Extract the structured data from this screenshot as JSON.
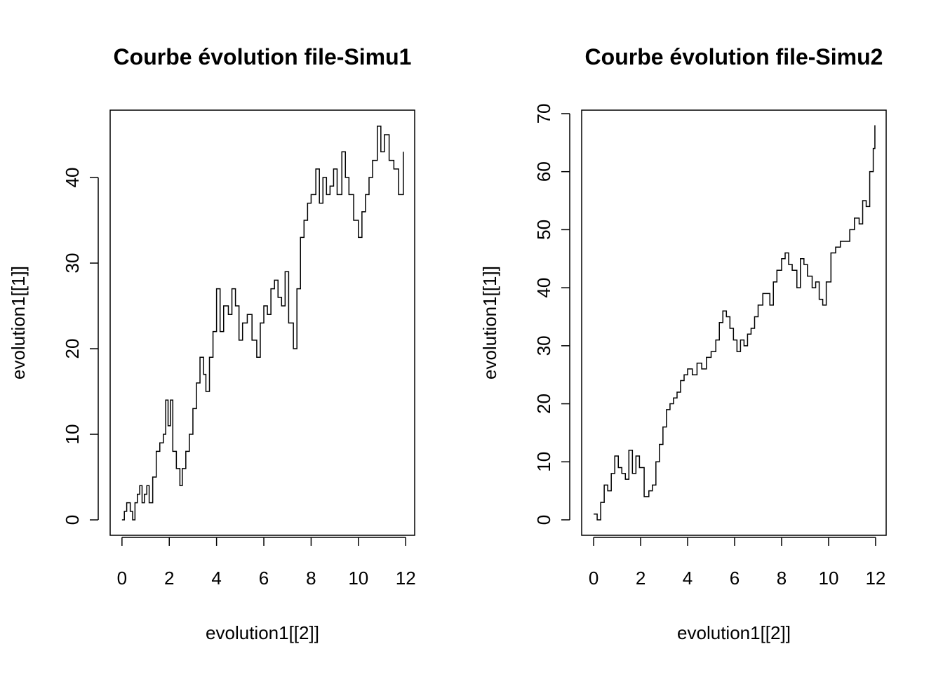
{
  "chart_data": [
    {
      "type": "line",
      "line_style": "step",
      "title": "Courbe évolution file-Simu1",
      "x_label": "evolution1[[2]]",
      "y_label": "evolution1[[1]]",
      "x": [
        0,
        0.1,
        0.2,
        0.35,
        0.45,
        0.55,
        0.65,
        0.75,
        0.85,
        0.95,
        1.05,
        1.15,
        1.3,
        1.45,
        1.6,
        1.75,
        1.85,
        1.95,
        2.05,
        2.15,
        2.3,
        2.45,
        2.55,
        2.7,
        2.85,
        3.0,
        3.15,
        3.3,
        3.45,
        3.55,
        3.7,
        3.85,
        4.0,
        4.15,
        4.3,
        4.5,
        4.65,
        4.8,
        4.95,
        5.1,
        5.3,
        5.5,
        5.7,
        5.85,
        6.0,
        6.15,
        6.3,
        6.45,
        6.6,
        6.75,
        6.9,
        7.05,
        7.25,
        7.4,
        7.55,
        7.7,
        7.85,
        8.0,
        8.2,
        8.35,
        8.5,
        8.65,
        8.8,
        8.95,
        9.1,
        9.3,
        9.45,
        9.6,
        9.8,
        10.0,
        10.15,
        10.3,
        10.45,
        10.6,
        10.8,
        10.95,
        11.1,
        11.3,
        11.5,
        11.7,
        11.9
      ],
      "values": [
        0,
        1,
        2,
        1,
        0,
        2,
        3,
        4,
        2,
        3,
        4,
        2,
        5,
        8,
        9,
        10,
        14,
        11,
        14,
        8,
        6,
        4,
        6,
        8,
        10,
        13,
        16,
        19,
        17,
        15,
        19,
        22,
        27,
        22,
        25,
        24,
        27,
        25,
        21,
        23,
        24,
        21,
        19,
        23,
        25,
        24,
        27,
        28,
        26,
        25,
        29,
        23,
        20,
        27,
        33,
        35,
        37,
        38,
        41,
        37,
        40,
        38,
        39,
        41,
        38,
        43,
        40,
        38,
        35,
        33,
        36,
        38,
        40,
        42,
        46,
        43,
        45,
        42,
        41,
        38,
        43
      ],
      "color": "#000000",
      "xlim": [
        -0.5,
        12.38
      ],
      "ylim": [
        -1.8,
        47.87
      ],
      "xticks": [
        0,
        2,
        4,
        6,
        8,
        10,
        12
      ],
      "yticks": [
        0,
        10,
        20,
        30,
        40
      ]
    },
    {
      "type": "line",
      "line_style": "step",
      "title": "Courbe évolution file-Simu2",
      "x_label": "evolution1[[2]]",
      "y_label": "evolution1[[1]]",
      "x": [
        0,
        0.15,
        0.3,
        0.45,
        0.6,
        0.75,
        0.9,
        1.05,
        1.2,
        1.35,
        1.5,
        1.65,
        1.8,
        1.95,
        2.15,
        2.35,
        2.5,
        2.65,
        2.8,
        2.95,
        3.1,
        3.25,
        3.4,
        3.55,
        3.7,
        3.85,
        4.0,
        4.2,
        4.4,
        4.6,
        4.8,
        5.0,
        5.2,
        5.35,
        5.5,
        5.65,
        5.8,
        5.95,
        6.1,
        6.25,
        6.4,
        6.55,
        6.7,
        6.85,
        7.0,
        7.2,
        7.35,
        7.5,
        7.65,
        7.8,
        8.0,
        8.15,
        8.3,
        8.45,
        8.65,
        8.8,
        8.95,
        9.1,
        9.3,
        9.45,
        9.6,
        9.75,
        9.9,
        10.1,
        10.3,
        10.5,
        10.7,
        10.9,
        11.1,
        11.3,
        11.45,
        11.6,
        11.75,
        11.9,
        11.97
      ],
      "values": [
        1,
        0,
        3,
        6,
        5,
        8,
        11,
        9,
        8,
        7,
        12,
        8,
        11,
        9,
        4,
        5,
        6,
        10,
        13,
        16,
        19,
        20,
        21,
        22,
        24,
        25,
        26,
        25,
        27,
        26,
        28,
        29,
        31,
        34,
        36,
        35,
        33,
        31,
        29,
        31,
        30,
        32,
        33,
        35,
        37,
        39,
        39,
        37,
        41,
        43,
        45,
        46,
        44,
        43,
        40,
        45,
        44,
        42,
        40,
        41,
        38,
        37,
        41,
        46,
        47,
        48,
        48,
        50,
        52,
        51,
        55,
        54,
        60,
        64,
        68
      ],
      "color": "#000000",
      "xlim": [
        -0.51,
        12.45
      ],
      "ylim": [
        -2.66,
        70.6
      ],
      "xticks": [
        0,
        2,
        4,
        6,
        8,
        10,
        12
      ],
      "yticks": [
        0,
        10,
        20,
        30,
        40,
        50,
        60,
        70
      ]
    }
  ]
}
